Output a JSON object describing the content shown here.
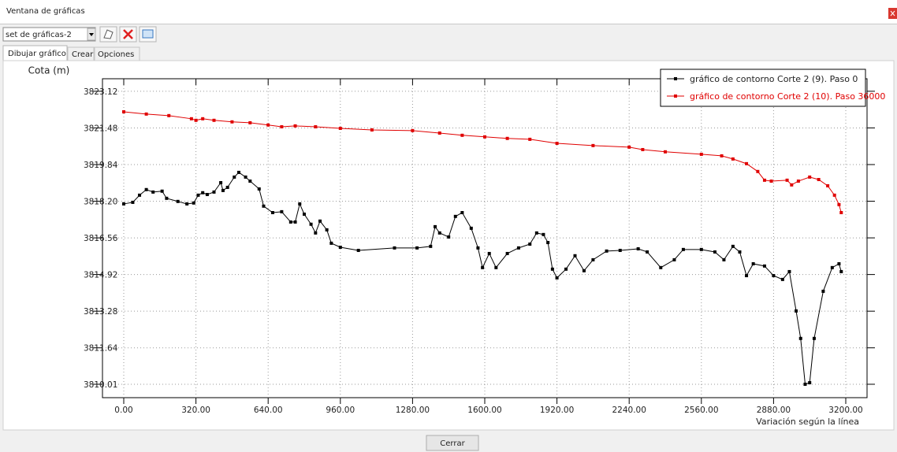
{
  "window": {
    "title": "Ventana de gráficas"
  },
  "toolbar": {
    "dropdown": "set de gráficas-2"
  },
  "tabs": [
    "Dibujar gráfico",
    "Crear",
    "Opciones"
  ],
  "buttons": {
    "close": "Cerrar"
  },
  "chart_data": {
    "type": "line",
    "y_label": "Cota (m)",
    "x_label": "Variación según la línea",
    "xlim": [
      -94.3,
      3294.3
    ],
    "ylim": [
      3809.41,
      3823.68
    ],
    "xticks": [
      {
        "value": 0,
        "label": "0.00"
      },
      {
        "value": 320,
        "label": "320.00"
      },
      {
        "value": 640,
        "label": "640.00"
      },
      {
        "value": 960,
        "label": "960.00"
      },
      {
        "value": 1280,
        "label": "1280.00"
      },
      {
        "value": 1600,
        "label": "1600.00"
      },
      {
        "value": 1920,
        "label": "1920.00"
      },
      {
        "value": 2240,
        "label": "2240.00"
      },
      {
        "value": 2560,
        "label": "2560.00"
      },
      {
        "value": 2880,
        "label": "2880.00"
      },
      {
        "value": 3200,
        "label": "3200.00"
      }
    ],
    "yticks": [
      3823.12,
      3821.48,
      3819.84,
      {
        "value": 3818.2,
        "label": "3818.20"
      },
      3816.56,
      3814.92,
      3813.28,
      3811.64,
      3810.01
    ],
    "grid": true,
    "legend": "top-right",
    "series": [
      {
        "name": "gráfico de contorno Corte 2 (9). Paso 0",
        "color": "#000000",
        "x": [
          0,
          40,
          70,
          100,
          130,
          170,
          190,
          240,
          280,
          310,
          330,
          350,
          370,
          400,
          430,
          440,
          460,
          490,
          510,
          540,
          560,
          600,
          620,
          660,
          700,
          740,
          760,
          780,
          800,
          830,
          850,
          870,
          900,
          920,
          960,
          1040,
          1200,
          1300,
          1360,
          1380,
          1400,
          1440,
          1470,
          1500,
          1540,
          1570,
          1590,
          1620,
          1650,
          1700,
          1750,
          1800,
          1830,
          1860,
          1880,
          1900,
          1920,
          1960,
          2000,
          2040,
          2080,
          2140,
          2200,
          2280,
          2320,
          2380,
          2440,
          2480,
          2560,
          2620,
          2660,
          2700,
          2730,
          2760,
          2790,
          2840,
          2880,
          2920,
          2950,
          2980,
          3000,
          3020,
          3040,
          3060,
          3100,
          3140,
          3170,
          3180
        ],
        "values": [
          3818.08,
          3818.15,
          3818.47,
          3818.72,
          3818.61,
          3818.65,
          3818.33,
          3818.19,
          3818.08,
          3818.12,
          3818.47,
          3818.58,
          3818.5,
          3818.61,
          3819.03,
          3818.68,
          3818.82,
          3819.28,
          3819.49,
          3819.28,
          3819.1,
          3818.75,
          3817.98,
          3817.69,
          3817.73,
          3817.27,
          3817.27,
          3818.08,
          3817.62,
          3817.17,
          3816.78,
          3817.31,
          3816.92,
          3816.32,
          3816.14,
          3816.0,
          3816.11,
          3816.11,
          3816.18,
          3817.06,
          3816.78,
          3816.6,
          3817.52,
          3817.69,
          3816.99,
          3816.11,
          3815.23,
          3815.86,
          3815.23,
          3815.86,
          3816.11,
          3816.28,
          3816.78,
          3816.71,
          3816.35,
          3815.16,
          3814.77,
          3815.16,
          3815.76,
          3815.09,
          3815.58,
          3815.97,
          3816.0,
          3816.07,
          3815.93,
          3815.23,
          3815.58,
          3816.04,
          3816.04,
          3815.93,
          3815.58,
          3816.18,
          3815.93,
          3814.87,
          3815.4,
          3815.3,
          3814.87,
          3814.7,
          3815.05,
          3813.29,
          3812.06,
          3810.01,
          3810.08,
          3812.06,
          3814.17,
          3815.23,
          3815.4,
          3815.05
        ]
      },
      {
        "name": "gráfico de contorno Corte 2 (10). Paso 36000",
        "color": "#e00000",
        "x": [
          0,
          100,
          200,
          300,
          320,
          350,
          400,
          480,
          560,
          640,
          700,
          760,
          850,
          960,
          1100,
          1280,
          1400,
          1500,
          1600,
          1700,
          1800,
          1920,
          2080,
          2240,
          2300,
          2400,
          2560,
          2650,
          2700,
          2760,
          2810,
          2840,
          2870,
          2940,
          2960,
          2990,
          3040,
          3080,
          3120,
          3150,
          3170,
          3180
        ],
        "values": [
          3822.2,
          3822.1,
          3822.03,
          3821.89,
          3821.82,
          3821.89,
          3821.82,
          3821.75,
          3821.71,
          3821.61,
          3821.53,
          3821.57,
          3821.53,
          3821.46,
          3821.39,
          3821.36,
          3821.25,
          3821.15,
          3821.08,
          3821.01,
          3820.97,
          3820.79,
          3820.69,
          3820.62,
          3820.51,
          3820.41,
          3820.3,
          3820.23,
          3820.09,
          3819.88,
          3819.53,
          3819.14,
          3819.1,
          3819.14,
          3818.93,
          3819.1,
          3819.28,
          3819.17,
          3818.89,
          3818.47,
          3818.05,
          3817.69
        ]
      }
    ]
  }
}
